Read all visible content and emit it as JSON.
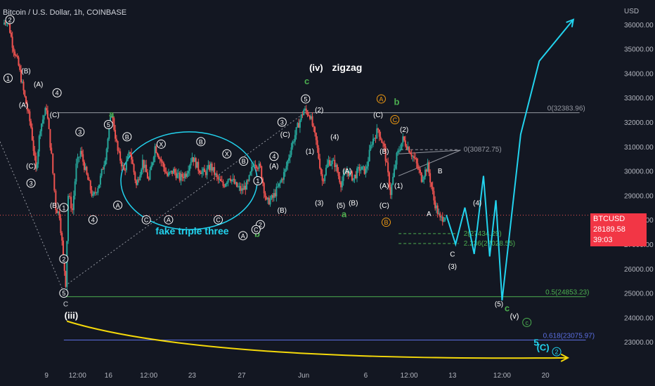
{
  "header": {
    "title": "Bitcoin / U.S. Dollar, 1h, COINBASE",
    "currency": "USD"
  },
  "price_badge": {
    "symbol": "BTCUSD",
    "price": "28189.58",
    "countdown": "39:03"
  },
  "colors": {
    "background": "#131722",
    "up": "#26a69a",
    "down": "#ef5350",
    "projection": "#22d3ee",
    "level_green": "#4caf50",
    "level_blue": "#5b6ee1",
    "arc": "#f5d90a",
    "badge": "#f23645",
    "label_orange": "#f39c12"
  },
  "chart_data": {
    "type": "candlestick",
    "title": "Bitcoin / U.S. Dollar, 1h, COINBASE",
    "y_axis": {
      "unit": "USD",
      "range": [
        22000,
        37000
      ],
      "ticks": [
        23000,
        24000,
        25000,
        26000,
        27000,
        28000,
        29000,
        30000,
        31000,
        32000,
        33000,
        34000,
        35000,
        36000
      ],
      "tick_labels": [
        "23000.00",
        "24000.00",
        "25000.00",
        "26000.00",
        "27000.00",
        "28000.00",
        "29000.00",
        "30000.00",
        "31000.00",
        "32000.00",
        "33000.00",
        "34000.00",
        "35000.00",
        "36000.00"
      ]
    },
    "x_axis": {
      "range": [
        0,
        100
      ],
      "tick_labels": [
        {
          "x": 7.5,
          "label": "9"
        },
        {
          "x": 12.5,
          "label": "12:00"
        },
        {
          "x": 17.5,
          "label": "16"
        },
        {
          "x": 24,
          "label": "12:00"
        },
        {
          "x": 31,
          "label": "23"
        },
        {
          "x": 39,
          "label": "27"
        },
        {
          "x": 49,
          "label": "Jun"
        },
        {
          "x": 59,
          "label": "6"
        },
        {
          "x": 66,
          "label": "12:00"
        },
        {
          "x": 73,
          "label": "13"
        },
        {
          "x": 81,
          "label": "12:00"
        },
        {
          "x": 88,
          "label": "20"
        }
      ]
    },
    "grid": false,
    "price_path": [
      [
        0.5,
        36000
      ],
      [
        1.2,
        36300
      ],
      [
        2,
        35200
      ],
      [
        3,
        34300
      ],
      [
        4,
        33000
      ],
      [
        5,
        31800
      ],
      [
        5.8,
        30000
      ],
      [
        6.5,
        31800
      ],
      [
        7.5,
        32600
      ],
      [
        8.3,
        30600
      ],
      [
        9,
        28500
      ],
      [
        9.6,
        28200
      ],
      [
        10.2,
        26500
      ],
      [
        10.6,
        25400
      ],
      [
        11,
        29000
      ],
      [
        11.7,
        28400
      ],
      [
        12.3,
        30200
      ],
      [
        13,
        30800
      ],
      [
        14,
        29800
      ],
      [
        15,
        28900
      ],
      [
        16,
        29500
      ],
      [
        17,
        30600
      ],
      [
        18,
        32400
      ],
      [
        19,
        30800
      ],
      [
        20,
        30000
      ],
      [
        21,
        30800
      ],
      [
        22,
        29400
      ],
      [
        23,
        30400
      ],
      [
        24,
        29600
      ],
      [
        25,
        31000
      ],
      [
        26,
        30400
      ],
      [
        27,
        29800
      ],
      [
        28,
        30000
      ],
      [
        29,
        29700
      ],
      [
        30,
        29900
      ],
      [
        31,
        30600
      ],
      [
        32,
        30100
      ],
      [
        33,
        29900
      ],
      [
        34,
        30200
      ],
      [
        35,
        29700
      ],
      [
        36,
        29400
      ],
      [
        37,
        29800
      ],
      [
        38,
        29400
      ],
      [
        39,
        29200
      ],
      [
        40,
        29500
      ],
      [
        41,
        30400
      ],
      [
        42,
        30100
      ],
      [
        43,
        28700
      ],
      [
        44,
        28900
      ],
      [
        45,
        29400
      ],
      [
        46,
        30000
      ],
      [
        47,
        31000
      ],
      [
        48,
        31800
      ],
      [
        49,
        32500
      ],
      [
        50,
        32300
      ],
      [
        51,
        31200
      ],
      [
        52,
        29600
      ],
      [
        53,
        30400
      ],
      [
        54,
        30300
      ],
      [
        55,
        29500
      ],
      [
        56,
        30000
      ],
      [
        57,
        29700
      ],
      [
        58,
        30100
      ],
      [
        59,
        30000
      ],
      [
        60,
        31200
      ],
      [
        61,
        31700
      ],
      [
        62,
        30900
      ],
      [
        63,
        29100
      ],
      [
        64,
        30600
      ],
      [
        65,
        31300
      ],
      [
        66,
        30900
      ],
      [
        67,
        30400
      ],
      [
        68,
        29700
      ],
      [
        69,
        30200
      ],
      [
        70,
        28800
      ],
      [
        71,
        28000
      ],
      [
        71.8,
        28189
      ]
    ],
    "projection_path": [
      [
        72,
        28200
      ],
      [
        73.5,
        27000
      ],
      [
        75,
        28500
      ],
      [
        76.5,
        26600
      ],
      [
        78,
        29800
      ],
      [
        79,
        26500
      ],
      [
        80,
        28800
      ],
      [
        81,
        24700
      ],
      [
        84,
        31500
      ],
      [
        87,
        34500
      ],
      [
        92.5,
        36200
      ]
    ],
    "levels": [
      {
        "type": "fib",
        "ratio": "0",
        "value": 32383.96,
        "label": "0(32383.96)"
      },
      {
        "type": "fib",
        "ratio": "0",
        "value": 30872.75,
        "label": "0(30872.75)"
      },
      {
        "type": "fib",
        "ratio": "0.5",
        "value": 24853.23,
        "label": "0.5(24853.23)"
      },
      {
        "type": "fib",
        "ratio": "0.618",
        "value": 23075.97,
        "label": "0.618(23075.97)"
      },
      {
        "type": "fib",
        "ratio": "2",
        "value": 27434.29,
        "label": "2(27434.29)"
      },
      {
        "type": "fib",
        "ratio": "2.236",
        "value": 27028.55,
        "label": "2.236(27028.55)"
      },
      {
        "type": "last_price",
        "value": 28189.58
      }
    ],
    "annotations": {
      "texts": [
        {
          "text": "fake triple three",
          "x": 31,
          "y": 27400,
          "color": "#22d3ee",
          "size": 14
        },
        {
          "text": "(iv)",
          "x": 51,
          "y": 34100,
          "color": "#ffffff",
          "size": 13
        },
        {
          "text": "zigzag",
          "x": 56,
          "y": 34100,
          "color": "#ffffff",
          "size": 14
        },
        {
          "text": "(iii)",
          "x": 11.5,
          "y": 23950,
          "color": "#ffffff",
          "size": 13
        },
        {
          "text": "c",
          "x": 49.5,
          "y": 33550,
          "color": "#4caf50",
          "size": 13
        },
        {
          "text": "b",
          "x": 64,
          "y": 32700,
          "color": "#4caf50",
          "size": 13
        },
        {
          "text": "a",
          "x": 18,
          "y": 32200,
          "color": "#4caf50",
          "size": 13
        },
        {
          "text": "a",
          "x": 55.5,
          "y": 28100,
          "color": "#4caf50",
          "size": 13
        },
        {
          "text": "b",
          "x": 41.5,
          "y": 27300,
          "color": "#4caf50",
          "size": 13
        },
        {
          "text": "c",
          "x": 81.8,
          "y": 24250,
          "color": "#4caf50",
          "size": 13
        },
        {
          "text": "C",
          "x": 10.6,
          "y": 24450,
          "color": "#d1d4dc",
          "size": 10
        },
        {
          "text": "(v)",
          "x": 83,
          "y": 23950,
          "color": "#ffffff",
          "size": 11
        },
        {
          "text": "5",
          "x": 86.5,
          "y": 22850,
          "color": "#22d3ee",
          "size": 13
        },
        {
          "text": "(C)",
          "x": 87.6,
          "y": 22650,
          "color": "#22d3ee",
          "size": 13
        },
        {
          "text": "(1)",
          "x": 50,
          "y": 30700,
          "color": "#ffffff",
          "size": 10
        },
        {
          "text": "(2)",
          "x": 51.5,
          "y": 32400,
          "color": "#ffffff",
          "size": 10
        },
        {
          "text": "(3)",
          "x": 51.5,
          "y": 28600,
          "color": "#ffffff",
          "size": 10
        },
        {
          "text": "(4)",
          "x": 54,
          "y": 31300,
          "color": "#ffffff",
          "size": 10
        },
        {
          "text": "(5)",
          "x": 55,
          "y": 28500,
          "color": "#ffffff",
          "size": 10
        },
        {
          "text": "(A)",
          "x": 56,
          "y": 29900,
          "color": "#ffffff",
          "size": 10
        },
        {
          "text": "(B)",
          "x": 57,
          "y": 28600,
          "color": "#ffffff",
          "size": 10
        },
        {
          "text": "(C)",
          "x": 61,
          "y": 32200,
          "color": "#ffffff",
          "size": 10
        },
        {
          "text": "(B)",
          "x": 62,
          "y": 30700,
          "color": "#ffffff",
          "size": 10
        },
        {
          "text": "(A)",
          "x": 62,
          "y": 29300,
          "color": "#ffffff",
          "size": 10
        },
        {
          "text": "(C)",
          "x": 62,
          "y": 28500,
          "color": "#ffffff",
          "size": 10
        },
        {
          "text": "(1)",
          "x": 64.3,
          "y": 29300,
          "color": "#ffffff",
          "size": 10
        },
        {
          "text": "(2)",
          "x": 65.2,
          "y": 31600,
          "color": "#ffffff",
          "size": 10
        },
        {
          "text": "B",
          "x": 71,
          "y": 29900,
          "color": "#ffffff",
          "size": 10
        },
        {
          "text": "A",
          "x": 69.2,
          "y": 28150,
          "color": "#ffffff",
          "size": 10
        },
        {
          "text": "C",
          "x": 73,
          "y": 26500,
          "color": "#ffffff",
          "size": 10
        },
        {
          "text": "(3)",
          "x": 73,
          "y": 26000,
          "color": "#ffffff",
          "size": 10
        },
        {
          "text": "(4)",
          "x": 77,
          "y": 28600,
          "color": "#ffffff",
          "size": 10
        },
        {
          "text": "(5)",
          "x": 80.5,
          "y": 24450,
          "color": "#ffffff",
          "size": 10
        },
        {
          "text": "(A)",
          "x": 6.2,
          "y": 33450,
          "color": "#ffffff",
          "size": 10
        },
        {
          "text": "(B)",
          "x": 8.8,
          "y": 28500,
          "color": "#ffffff",
          "size": 10
        },
        {
          "text": "(C)",
          "x": 8.8,
          "y": 32200,
          "color": "#ffffff",
          "size": 10
        },
        {
          "text": "(B)",
          "x": 4.2,
          "y": 34000,
          "color": "#ffffff",
          "size": 10
        },
        {
          "text": "(A)",
          "x": 3.8,
          "y": 32600,
          "color": "#ffffff",
          "size": 10
        },
        {
          "text": "(C)",
          "x": 5,
          "y": 30100,
          "color": "#ffffff",
          "size": 10
        },
        {
          "text": "(C)",
          "x": 46,
          "y": 31400,
          "color": "#ffffff",
          "size": 10
        },
        {
          "text": "(A)",
          "x": 44.2,
          "y": 30100,
          "color": "#ffffff",
          "size": 10
        },
        {
          "text": "(B)",
          "x": 45.5,
          "y": 28300,
          "color": "#ffffff",
          "size": 10
        }
      ],
      "circled": [
        {
          "text": "2",
          "x": 1.6,
          "y": 36200,
          "color": "#ffffff"
        },
        {
          "text": "1",
          "x": 1.3,
          "y": 33800,
          "color": "#ffffff"
        },
        {
          "text": "3",
          "x": 5,
          "y": 29500,
          "color": "#ffffff"
        },
        {
          "text": "4",
          "x": 9.2,
          "y": 33200,
          "color": "#ffffff"
        },
        {
          "text": "1",
          "x": 10.3,
          "y": 28500,
          "color": "#ffffff"
        },
        {
          "text": "2",
          "x": 10.3,
          "y": 26400,
          "color": "#ffffff"
        },
        {
          "text": "5",
          "x": 10.3,
          "y": 25000,
          "color": "#ffffff"
        },
        {
          "text": "3",
          "x": 12.9,
          "y": 31600,
          "color": "#ffffff"
        },
        {
          "text": "4",
          "x": 15,
          "y": 28000,
          "color": "#ffffff"
        },
        {
          "text": "5",
          "x": 17.5,
          "y": 31900,
          "color": "#ffffff"
        },
        {
          "text": "A",
          "x": 19,
          "y": 28600,
          "color": "#ffffff"
        },
        {
          "text": "B",
          "x": 20.5,
          "y": 31400,
          "color": "#ffffff"
        },
        {
          "text": "C",
          "x": 23.6,
          "y": 28000,
          "color": "#ffffff"
        },
        {
          "text": "X",
          "x": 26,
          "y": 31100,
          "color": "#ffffff"
        },
        {
          "text": "A",
          "x": 27.2,
          "y": 28000,
          "color": "#ffffff"
        },
        {
          "text": "B",
          "x": 32.4,
          "y": 31200,
          "color": "#ffffff"
        },
        {
          "text": "C",
          "x": 35.2,
          "y": 28000,
          "color": "#ffffff"
        },
        {
          "text": "X",
          "x": 36.6,
          "y": 30700,
          "color": "#ffffff"
        },
        {
          "text": "B",
          "x": 39.3,
          "y": 30400,
          "color": "#ffffff"
        },
        {
          "text": "1",
          "x": 41.6,
          "y": 29600,
          "color": "#ffffff"
        },
        {
          "text": "2",
          "x": 42,
          "y": 27800,
          "color": "#ffffff"
        },
        {
          "text": "C",
          "x": 41.3,
          "y": 27600,
          "color": "#ffffff"
        },
        {
          "text": "A",
          "x": 39.2,
          "y": 27350,
          "color": "#ffffff"
        },
        {
          "text": "3",
          "x": 45.5,
          "y": 32000,
          "color": "#ffffff"
        },
        {
          "text": "4",
          "x": 44.2,
          "y": 30600,
          "color": "#ffffff"
        },
        {
          "text": "5",
          "x": 49.3,
          "y": 32950,
          "color": "#ffffff"
        },
        {
          "text": "A",
          "x": 61.5,
          "y": 32950,
          "color": "#f39c12"
        },
        {
          "text": "C",
          "x": 63.7,
          "y": 32100,
          "color": "#f39c12"
        },
        {
          "text": "B",
          "x": 62.3,
          "y": 27900,
          "color": "#f39c12"
        },
        {
          "text": "c",
          "x": 85,
          "y": 23800,
          "color": "#4caf50"
        },
        {
          "text": "2",
          "x": 89.8,
          "y": 22600,
          "color": "#22d3ee"
        }
      ]
    }
  }
}
